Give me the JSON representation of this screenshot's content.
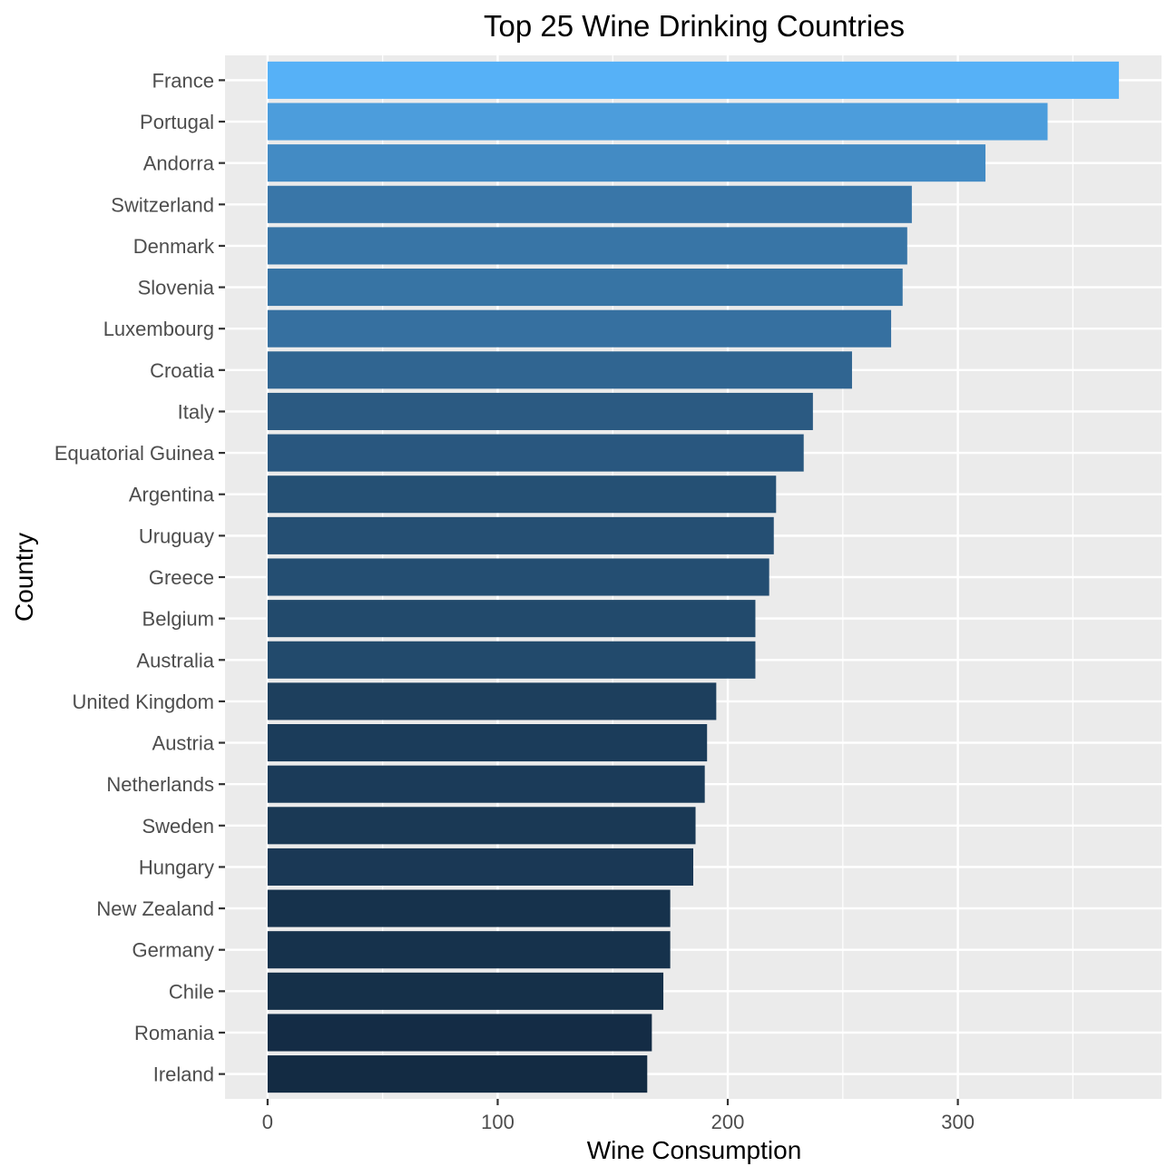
{
  "chart_data": {
    "type": "bar",
    "orientation": "horizontal",
    "title": "Top 25 Wine Drinking Countries",
    "xlabel": "Wine Consumption",
    "ylabel": "Country",
    "xlim": [
      -18.5,
      388.5
    ],
    "x_ticks": [
      0,
      100,
      200,
      300
    ],
    "grid": true,
    "legend": "none",
    "color_scale": [
      "#132B43",
      "#56B1F7"
    ],
    "categories": [
      "France",
      "Portugal",
      "Andorra",
      "Switzerland",
      "Denmark",
      "Slovenia",
      "Luxembourg",
      "Croatia",
      "Italy",
      "Equatorial Guinea",
      "Argentina",
      "Uruguay",
      "Greece",
      "Belgium",
      "Australia",
      "United Kingdom",
      "Austria",
      "Netherlands",
      "Sweden",
      "Hungary",
      "New Zealand",
      "Germany",
      "Chile",
      "Romania",
      "Ireland"
    ],
    "values": [
      370,
      339,
      312,
      280,
      278,
      276,
      271,
      254,
      237,
      233,
      221,
      220,
      218,
      212,
      212,
      195,
      191,
      190,
      186,
      185,
      175,
      175,
      172,
      167,
      165
    ]
  }
}
